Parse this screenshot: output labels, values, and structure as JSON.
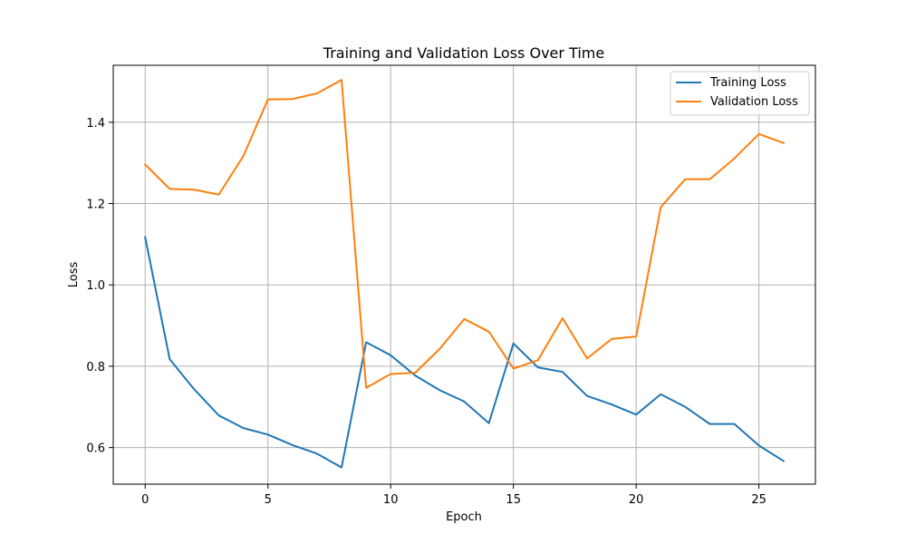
{
  "chart_data": {
    "type": "line",
    "title": "Training and Validation Loss Over Time",
    "xlabel": "Epoch",
    "ylabel": "Loss",
    "xlim": [
      -1.3,
      27.3
    ],
    "ylim": [
      0.51,
      1.54
    ],
    "xticks": [
      0,
      5,
      10,
      15,
      20,
      25
    ],
    "yticks": [
      0.6,
      0.8,
      1.0,
      1.2,
      1.4
    ],
    "ytick_labels": [
      "0.6",
      "0.8",
      "1.0",
      "1.2",
      "1.4"
    ],
    "grid": true,
    "legend_position": "top-right",
    "x": [
      0,
      1,
      2,
      3,
      4,
      5,
      6,
      7,
      8,
      9,
      10,
      11,
      12,
      13,
      14,
      15,
      16,
      17,
      18,
      19,
      20,
      21,
      22,
      23,
      24,
      25,
      26
    ],
    "series": [
      {
        "name": "Training Loss",
        "color": "#1f77b4",
        "values": [
          1.117,
          0.817,
          0.743,
          0.679,
          0.648,
          0.632,
          0.606,
          0.585,
          0.551,
          0.859,
          0.827,
          0.777,
          0.741,
          0.713,
          0.66,
          0.856,
          0.797,
          0.786,
          0.727,
          0.706,
          0.681,
          0.731,
          0.7,
          0.658,
          0.658,
          0.605,
          0.567
        ]
      },
      {
        "name": "Validation Loss",
        "color": "#ff7f0e",
        "values": [
          1.296,
          1.236,
          1.234,
          1.222,
          1.317,
          1.456,
          1.457,
          1.471,
          1.504,
          0.747,
          0.781,
          0.784,
          0.843,
          0.916,
          0.885,
          0.794,
          0.815,
          0.918,
          0.819,
          0.867,
          0.873,
          1.191,
          1.26,
          1.26,
          1.311,
          1.371,
          1.349
        ]
      }
    ]
  }
}
